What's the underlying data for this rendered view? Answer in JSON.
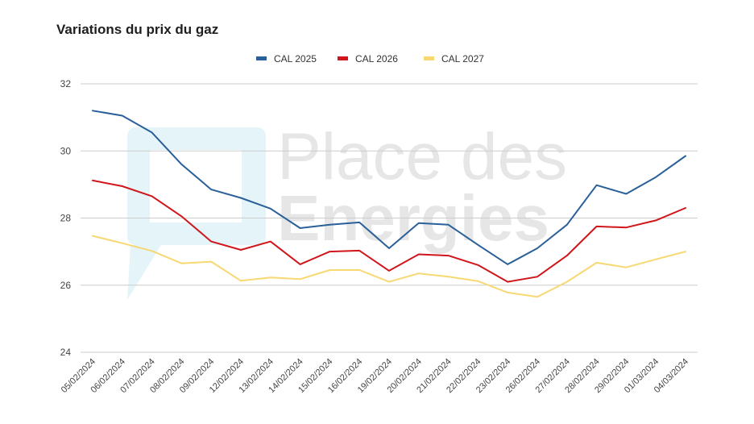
{
  "title": "Variations du prix du gaz",
  "watermark": {
    "line1": "Place des",
    "line2": "Energies",
    "icon": "speech-bubble-logo",
    "color": "#e6e6e6"
  },
  "colors": {
    "CAL 2025": "#2a6099",
    "CAL 2026": "#d0161b",
    "CAL 2027": "#f7d873",
    "grid": "#cccccc"
  },
  "chart_data": {
    "type": "line",
    "title": "Variations du prix du gaz",
    "xlabel": "",
    "ylabel": "",
    "ylim": [
      24,
      32
    ],
    "yticks": [
      24,
      26,
      28,
      30,
      32
    ],
    "grid": true,
    "legend_position": "top",
    "categories": [
      "05/02/2024",
      "06/02/2024",
      "07/02/2024",
      "08/02/2024",
      "09/02/2024",
      "12/02/2024",
      "13/02/2024",
      "14/02/2024",
      "15/02/2024",
      "16/02/2024",
      "19/02/2024",
      "20/02/2024",
      "21/02/2024",
      "22/02/2024",
      "23/02/2024",
      "26/02/2024",
      "27/02/2024",
      "28/02/2024",
      "29/02/2024",
      "01/03/2024",
      "04/03/2024"
    ],
    "series": [
      {
        "name": "CAL 2025",
        "values": [
          31.2,
          31.05,
          30.55,
          29.6,
          28.85,
          28.6,
          28.28,
          27.7,
          27.8,
          27.87,
          27.1,
          27.85,
          27.8,
          27.2,
          26.62,
          27.1,
          27.8,
          28.98,
          28.72,
          29.22,
          29.85
        ]
      },
      {
        "name": "CAL 2026",
        "values": [
          29.12,
          28.95,
          28.65,
          28.05,
          27.3,
          27.05,
          27.3,
          26.62,
          27.0,
          27.03,
          26.43,
          26.92,
          26.88,
          26.6,
          26.1,
          26.25,
          26.88,
          27.75,
          27.72,
          27.93,
          28.3
        ]
      },
      {
        "name": "CAL 2027",
        "values": [
          27.47,
          27.25,
          27.02,
          26.65,
          26.7,
          26.13,
          26.23,
          26.18,
          26.45,
          26.45,
          26.1,
          26.35,
          26.25,
          26.12,
          25.78,
          25.65,
          26.1,
          26.67,
          26.53,
          26.77,
          27.0
        ]
      }
    ]
  }
}
